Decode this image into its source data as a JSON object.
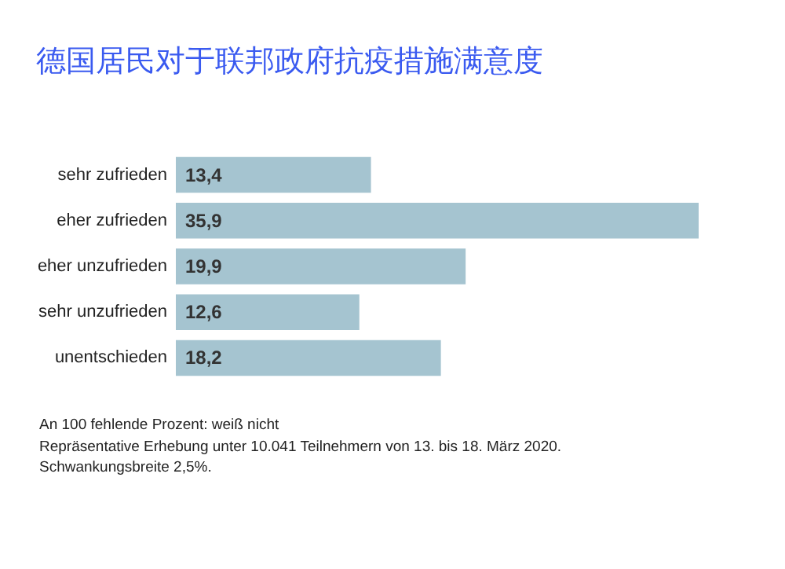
{
  "chart_data": {
    "type": "bar",
    "orientation": "horizontal",
    "tick_labels": "y",
    "title": "德国居民对于联邦政府抗疫措施满意度",
    "categories": [
      "sehr zufrieden",
      "eher zufrieden",
      "eher unzufrieden",
      "sehr unzufrieden",
      "unentschieden"
    ],
    "values": [
      13.4,
      35.9,
      19.9,
      12.6,
      18.2
    ],
    "value_labels": [
      "13,4",
      "35,9",
      "19,9",
      "12,6",
      "18,2"
    ],
    "color": "#a5c4d0",
    "annotations": [
      "An 100 fehlende Prozent: weiß nicht",
      "Repräsentative Erhebung unter 10.041 Teilnehmern von 13. bis 18. März 2020.",
      "Schwankungsbreite 2,5%."
    ]
  }
}
